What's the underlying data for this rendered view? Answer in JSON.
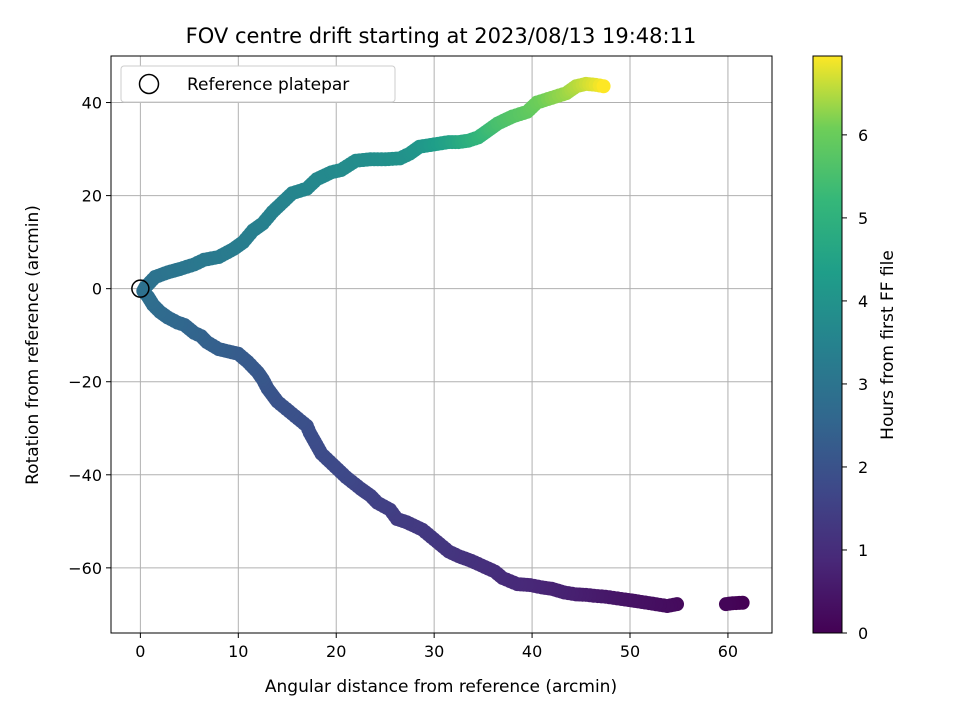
{
  "chart_data": {
    "type": "scatter",
    "title": "FOV centre drift starting at 2023/08/13 19:48:11",
    "xlabel": "Angular distance from reference (arcmin)",
    "ylabel": "Rotation from reference (arcmin)",
    "xlim": [
      -3,
      64.5
    ],
    "ylim": [
      -74,
      50
    ],
    "xticks": [
      0,
      10,
      20,
      30,
      40,
      50,
      60
    ],
    "yticks": [
      -60,
      -40,
      -20,
      0,
      20,
      40
    ],
    "grid": true,
    "legend": {
      "placement": "top-left",
      "entries": [
        "Reference platepar"
      ]
    },
    "reference_point": {
      "x": 0,
      "y": 0
    },
    "colorbar": {
      "label": "Hours from first FF file",
      "colormap": "viridis",
      "range": [
        0,
        6.95
      ],
      "ticks": [
        0,
        1,
        2,
        3,
        4,
        5,
        6
      ]
    },
    "series": [
      {
        "color_value": "hours",
        "points": [
          [
            61.5,
            -67.5,
            0.0
          ],
          [
            60.5,
            -67.6,
            0.05
          ],
          [
            59.8,
            -67.8,
            0.1
          ],
          [
            54.8,
            -67.8,
            0.2
          ],
          [
            53.8,
            -68.2,
            0.25
          ],
          [
            50.8,
            -67.2,
            0.35
          ],
          [
            49.5,
            -66.8,
            0.4
          ],
          [
            47.5,
            -66.2,
            0.5
          ],
          [
            46.3,
            -66.0,
            0.55
          ],
          [
            45.5,
            -65.8,
            0.6
          ],
          [
            44.5,
            -65.7,
            0.65
          ],
          [
            43.3,
            -65.3,
            0.7
          ],
          [
            42.0,
            -64.5,
            0.75
          ],
          [
            41.0,
            -64.2,
            0.8
          ],
          [
            39.8,
            -63.7,
            0.85
          ],
          [
            38.5,
            -63.5,
            0.9
          ],
          [
            37.0,
            -62.2,
            0.95
          ],
          [
            36.2,
            -60.8,
            1.0
          ],
          [
            33.8,
            -58.5,
            1.1
          ],
          [
            32.5,
            -57.5,
            1.15
          ],
          [
            31.5,
            -56.5,
            1.2
          ],
          [
            28.8,
            -51.8,
            1.3
          ],
          [
            27.2,
            -50.2,
            1.35
          ],
          [
            26.2,
            -49.5,
            1.4
          ],
          [
            25.5,
            -47.5,
            1.45
          ],
          [
            24.2,
            -46.0,
            1.5
          ],
          [
            23.5,
            -44.5,
            1.55
          ],
          [
            22.5,
            -43.0,
            1.6
          ],
          [
            21.0,
            -40.5,
            1.7
          ],
          [
            18.5,
            -35.5,
            1.8
          ],
          [
            17.3,
            -31.0,
            1.85
          ],
          [
            17.0,
            -29.5,
            1.9
          ],
          [
            14.0,
            -24.3,
            2.0
          ],
          [
            13.0,
            -21.5,
            2.05
          ],
          [
            12.5,
            -19.5,
            2.1
          ],
          [
            12.0,
            -18.0,
            2.15
          ],
          [
            11.0,
            -15.8,
            2.2
          ],
          [
            10.0,
            -14.0,
            2.25
          ],
          [
            9.0,
            -13.5,
            2.3
          ],
          [
            8.0,
            -13.0,
            2.35
          ],
          [
            6.8,
            -11.5,
            2.4
          ],
          [
            6.2,
            -10.2,
            2.45
          ],
          [
            5.5,
            -9.5,
            2.5
          ],
          [
            4.5,
            -7.8,
            2.55
          ],
          [
            3.8,
            -7.3,
            2.6
          ],
          [
            2.8,
            -6.2,
            2.65
          ],
          [
            2.0,
            -5.0,
            2.7
          ],
          [
            1.3,
            -3.5,
            2.75
          ],
          [
            0.8,
            -1.8,
            2.8
          ],
          [
            0.3,
            -0.5,
            2.85
          ],
          [
            0.5,
            0.3,
            2.9
          ],
          [
            1.5,
            2.5,
            2.95
          ],
          [
            2.8,
            3.5,
            3.0
          ],
          [
            4.0,
            4.2,
            3.05
          ],
          [
            5.5,
            5.2,
            3.1
          ],
          [
            6.5,
            6.2,
            3.15
          ],
          [
            8.0,
            6.8,
            3.2
          ],
          [
            9.5,
            8.5,
            3.25
          ],
          [
            10.5,
            10.0,
            3.3
          ],
          [
            11.5,
            12.5,
            3.35
          ],
          [
            12.5,
            14.0,
            3.4
          ],
          [
            13.5,
            16.5,
            3.45
          ],
          [
            14.5,
            18.5,
            3.5
          ],
          [
            15.5,
            20.5,
            3.55
          ],
          [
            17.0,
            21.5,
            3.6
          ],
          [
            18.0,
            23.5,
            3.65
          ],
          [
            19.5,
            25.0,
            3.7
          ],
          [
            20.5,
            25.5,
            3.75
          ],
          [
            22.0,
            27.5,
            3.8
          ],
          [
            23.5,
            27.8,
            3.85
          ],
          [
            25.0,
            27.8,
            3.9
          ],
          [
            26.5,
            28.0,
            3.95
          ],
          [
            27.5,
            29.0,
            4.0
          ],
          [
            28.5,
            30.5,
            4.1
          ],
          [
            30.0,
            31.0,
            4.3
          ],
          [
            31.5,
            31.5,
            4.5
          ],
          [
            32.5,
            31.5,
            4.7
          ],
          [
            33.5,
            31.8,
            4.9
          ],
          [
            34.5,
            32.5,
            5.1
          ],
          [
            35.5,
            34.0,
            5.3
          ],
          [
            36.5,
            35.5,
            5.5
          ],
          [
            38.0,
            37.0,
            5.7
          ],
          [
            39.5,
            38.0,
            5.85
          ],
          [
            40.5,
            40.0,
            6.0
          ],
          [
            42.0,
            41.0,
            6.2
          ],
          [
            43.5,
            42.0,
            6.35
          ],
          [
            44.5,
            43.5,
            6.5
          ],
          [
            45.5,
            44.0,
            6.65
          ],
          [
            46.5,
            43.8,
            6.8
          ],
          [
            47.3,
            43.5,
            6.95
          ]
        ]
      }
    ]
  }
}
